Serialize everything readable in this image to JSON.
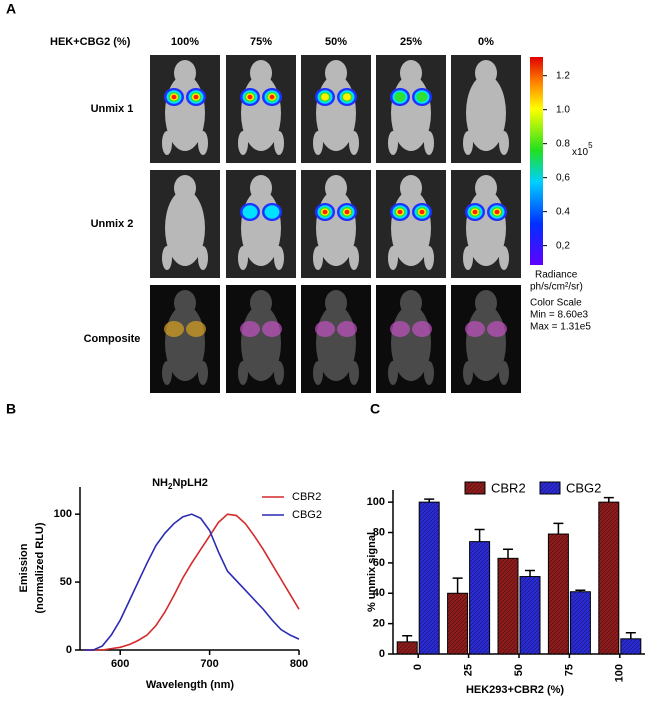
{
  "panel_labels": [
    "A",
    "B",
    "C"
  ],
  "panel_a": {
    "header": "HEK+CBG2 (%)",
    "columns": [
      "100%",
      "75%",
      "50%",
      "25%",
      "0%"
    ],
    "rows": [
      "Unmix 1",
      "Unmix 2",
      "Composite"
    ],
    "colorbar": {
      "lim": [
        0.086,
        1.31
      ],
      "ticks": [
        1.2,
        {
          "value": 1.0,
          "label": "1.0"
        },
        0.8,
        {
          "value": 0.6,
          "label": "0,6"
        },
        0.4,
        {
          "value": 0.2,
          "label": "0,2"
        }
      ],
      "multiplier": [
        "x10",
        "5"
      ],
      "unit": [
        "Radiance",
        "ph/s/cm²/sr)"
      ],
      "scale_info": [
        "Color Scale",
        "Min = 8.60e3",
        "Max = 1.31e5"
      ]
    }
  },
  "chart_data": [
    {
      "type": "line",
      "title": [
        "NH",
        "2",
        "NpLH2"
      ],
      "x_label": "Wavelength (nm)",
      "y_label": [
        "Emission",
        "(normalized RLU)"
      ],
      "x": [
        560,
        570,
        580,
        590,
        600,
        610,
        620,
        630,
        640,
        650,
        660,
        670,
        680,
        690,
        700,
        710,
        720,
        730,
        740,
        750,
        760,
        770,
        780,
        790,
        800
      ],
      "series": [
        {
          "name": "CBR2",
          "color": "#d42a2a",
          "values": [
            0,
            0,
            0,
            1,
            2,
            4,
            7,
            11,
            18,
            28,
            40,
            53,
            64,
            74,
            84,
            94,
            100,
            99,
            93,
            84,
            74,
            63,
            52,
            41,
            30
          ]
        },
        {
          "name": "CBG2",
          "color": "#2a2ab4",
          "values": [
            0,
            0,
            3,
            11,
            22,
            36,
            50,
            64,
            77,
            86,
            93,
            98,
            100,
            97,
            88,
            72,
            58,
            51,
            44,
            37,
            30,
            22,
            15,
            11,
            8
          ]
        }
      ],
      "xlim": [
        555,
        800
      ],
      "xticks": [
        600,
        700,
        800
      ],
      "ylim": [
        0,
        120
      ],
      "yticks": [
        0,
        50,
        100
      ]
    },
    {
      "type": "bar",
      "x_label": "HEK293+CBR2 (%)",
      "y_label": "% unmix signal",
      "categories": [
        "0",
        "25",
        "50",
        "75",
        "100"
      ],
      "series": [
        {
          "name": "CBR2",
          "color": "#8e1c1c",
          "values": [
            8,
            40,
            63,
            79,
            100
          ],
          "errors": [
            4,
            10,
            6,
            7,
            3
          ]
        },
        {
          "name": "CBG2",
          "color": "#2b2bd6",
          "values": [
            100,
            74,
            51,
            41,
            10
          ],
          "errors": [
            2,
            8,
            4,
            1,
            4
          ]
        }
      ],
      "ylim": [
        0,
        108
      ],
      "yticks": [
        0,
        20,
        40,
        60,
        80,
        100
      ]
    }
  ]
}
